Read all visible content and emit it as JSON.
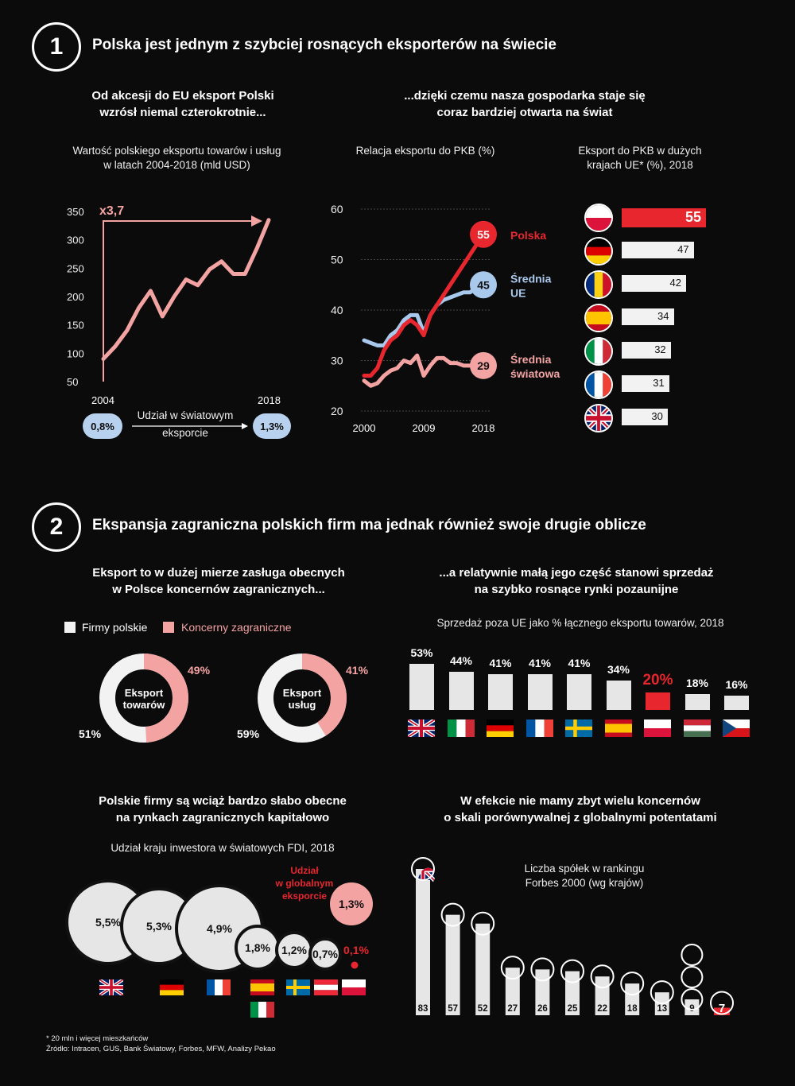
{
  "section1": {
    "number": "1",
    "title": "Polska jest jednym z szybciej rosnących eksporterów na świecie",
    "left_subtitle": [
      "Od akcesji do EU eksport Polski",
      "wzrósł niemal czterokrotnie..."
    ],
    "right_subtitle": [
      "...dzięki czemu nasza gospodarka staje się",
      "coraz bardziej otwarta na świat"
    ]
  },
  "chart1": {
    "type": "line",
    "title": [
      "Wartość polskiego eksportu towarów i usług",
      "w latach 2004-2018 (mld USD)"
    ],
    "multiplier_label": "x3,7",
    "x_labels": [
      "2004",
      "2018"
    ],
    "y_ticks": [
      "350",
      "300",
      "250",
      "200",
      "150",
      "100",
      "50"
    ],
    "ylim": [
      50,
      350
    ],
    "x": [
      2004,
      2005,
      2006,
      2007,
      2008,
      2009,
      2010,
      2011,
      2012,
      2013,
      2014,
      2015,
      2016,
      2017,
      2018
    ],
    "values": [
      90,
      112,
      140,
      180,
      210,
      165,
      200,
      230,
      220,
      248,
      262,
      240,
      240,
      285,
      335
    ],
    "color": "#f4a3a3"
  },
  "world_share": {
    "start": "0,8%",
    "end": "1,3%",
    "label": [
      "Udział w światowym",
      "eksporcie"
    ]
  },
  "chart2": {
    "type": "line",
    "title": "Relacja eksportu do PKB (%)",
    "x_labels": [
      "2000",
      "2009",
      "2018"
    ],
    "y_ticks": [
      "60",
      "50",
      "40",
      "30",
      "20"
    ],
    "ylim": [
      20,
      60
    ],
    "x": [
      2000,
      2001,
      2002,
      2003,
      2004,
      2005,
      2006,
      2007,
      2008,
      2009,
      2010,
      2011,
      2012,
      2013,
      2014,
      2015,
      2016,
      2017,
      2018
    ],
    "series": [
      {
        "name": "Polska",
        "color": "#e8262e",
        "end_label": "55",
        "values": [
          27,
          27,
          28.5,
          32,
          34,
          35,
          37,
          38,
          37,
          35,
          39,
          41,
          43,
          45,
          47,
          49,
          51,
          53,
          55
        ]
      },
      {
        "name": "Średnia UE",
        "color": "#a8c8ec",
        "end_label": "45",
        "values": [
          34,
          33.5,
          33,
          33,
          35,
          36,
          38,
          39,
          39,
          35.5,
          39,
          41,
          42,
          42.5,
          43,
          43.5,
          43.5,
          44.5,
          45
        ]
      },
      {
        "name": "Średnia światowa",
        "color": "#f4a3a3",
        "end_label": "29",
        "values": [
          26,
          25,
          25.5,
          27,
          28,
          28.5,
          30,
          29.5,
          31,
          27,
          29,
          30.5,
          30.5,
          29.5,
          29.5,
          29,
          29,
          29,
          29
        ]
      }
    ],
    "legend": {
      "polska": "Polska",
      "ue": [
        "Średnia",
        "UE"
      ],
      "world": [
        "Średnia",
        "światowa"
      ]
    }
  },
  "chart3": {
    "type": "bar",
    "title": [
      "Eksport do PKB w dużych",
      "krajach UE* (%), 2018"
    ],
    "categories": [
      "poland-flag",
      "germany-flag",
      "romania-flag",
      "spain-flag",
      "italy-flag",
      "france-flag",
      "uk-flag"
    ],
    "values": [
      55,
      47,
      42,
      34,
      32,
      31,
      30
    ],
    "labels": [
      "55",
      "47",
      "42",
      "34",
      "32",
      "31",
      "30"
    ],
    "highlight_color": "#e8262e"
  },
  "section2": {
    "number": "2",
    "title": "Ekspansja zagraniczna polskich firm ma jednak również swoje drugie oblicze",
    "left_subtitle": [
      "Eksport to w dużej mierze zasługa obecnych",
      "w Polsce koncernów zagranicznych..."
    ],
    "right_subtitle": [
      "...a relatywnie małą jego część stanowi sprzedaż",
      "na szybko rosnące rynki pozaunijne"
    ]
  },
  "donuts": {
    "legend": {
      "polish": "Firmy polskie",
      "foreign": "Koncerny zagraniczne"
    },
    "charts": [
      {
        "type": "pie",
        "center": [
          "Eksport",
          "towarów"
        ],
        "values": [
          51,
          49
        ],
        "labels": [
          "51%",
          "49%"
        ]
      },
      {
        "type": "pie",
        "center": [
          "Eksport",
          "usług"
        ],
        "values": [
          59,
          41
        ],
        "labels": [
          "59%",
          "41%"
        ]
      }
    ],
    "colors": {
      "polish": "#f2f2f2",
      "foreign": "#f4a3a3"
    }
  },
  "chart4": {
    "type": "bar",
    "title": "Sprzedaż poza UE jako % łącznego eksportu towarów, 2018",
    "categories": [
      "uk-flag",
      "italy-flag",
      "germany-flag",
      "france-flag",
      "sweden-flag",
      "spain-flag",
      "poland-flag",
      "hungary-flag",
      "czech-flag"
    ],
    "values": [
      53,
      44,
      41,
      41,
      41,
      34,
      20,
      18,
      16
    ],
    "labels": [
      "53%",
      "44%",
      "41%",
      "41%",
      "41%",
      "34%",
      "20%",
      "18%",
      "16%"
    ]
  },
  "fdi": {
    "subtitle": [
      "Polskie firmy są wciąż bardzo słabo obecne",
      "na rynkach zagranicznych kapitałowo"
    ],
    "title": "Udział kraju inwestora w światowych FDI, 2018",
    "type": "bubble",
    "labels": [
      "5,5%",
      "5,3%",
      "4,9%",
      "1,8%",
      "1,2%",
      "0,7%",
      "0,1%"
    ],
    "values": [
      5.5,
      5.3,
      4.9,
      1.8,
      1.2,
      0.7,
      0.1
    ],
    "export_share_label": [
      "Udział",
      "w globalnym",
      "eksporcie"
    ],
    "export_share_value": "1,3%"
  },
  "forbes": {
    "subtitle": [
      "W efekcie nie mamy zbyt wielu koncernów",
      "o skali porównywalnej z globalnymi potentatami"
    ],
    "title": [
      "Liczba spółek w rankingu",
      "Forbes 2000 (wg krajów)"
    ],
    "type": "bar",
    "categories": [
      "uk-flag",
      "france-flag",
      "germany-flag",
      "italy-flag",
      "sweden-flag",
      "netherlands-flag",
      "spain-flag",
      "ireland-flag",
      "denmark-flag",
      "belgium-flag",
      "poland-flag"
    ],
    "values": [
      83,
      57,
      52,
      27,
      26,
      25,
      22,
      18,
      13,
      9,
      7
    ],
    "labels": [
      "83",
      "57",
      "52",
      "27",
      "26",
      "25",
      "22",
      "18",
      "13",
      "9",
      "7"
    ]
  },
  "footer": {
    "note": "* 20 mln i więcej mieszkańców",
    "source": "Źródło: Intracen, GUS, Bank Światowy, Forbes, MFW, Analizy Pekao"
  }
}
